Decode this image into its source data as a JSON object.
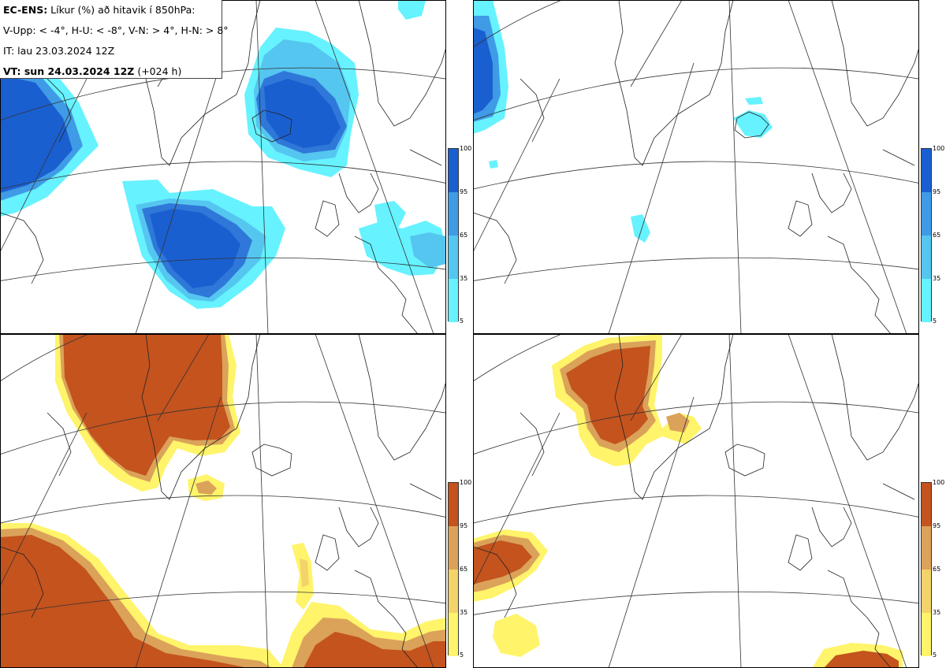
{
  "header": {
    "line1_bold": "EC-ENS:",
    "line1_rest": " Líkur (%) að hitavik í 850hPa:",
    "line2": "V-Upp: < -4°, H-U: < -8°, V-N: > 4°, H-N: > 8°",
    "line3": "IT: lau 23.03.2024 12Z",
    "line4_bold": "VT: sun 24.03.2024 12Z",
    "line4_rest": " (+024 h)"
  },
  "colorbar_ticks": [
    "100",
    "95",
    "65",
    "35",
    "5"
  ],
  "colors": {
    "cold_scale": [
      "#66f2ff",
      "#55c6f0",
      "#3f9be6",
      "#2f78d9",
      "#1a5fd0"
    ],
    "warm_scale": [
      "#fff46a",
      "#f3d36a",
      "#dba25a",
      "#c97036",
      "#c4531e"
    ],
    "border": "#000000",
    "coast": "#333333"
  },
  "panels": [
    {
      "name": "V-Upp",
      "position": "top-left",
      "scale": "cold"
    },
    {
      "name": "H-U",
      "position": "top-right",
      "scale": "cold"
    },
    {
      "name": "V-N",
      "position": "bottom-left",
      "scale": "warm"
    },
    {
      "name": "H-N",
      "position": "bottom-right",
      "scale": "warm"
    }
  ]
}
